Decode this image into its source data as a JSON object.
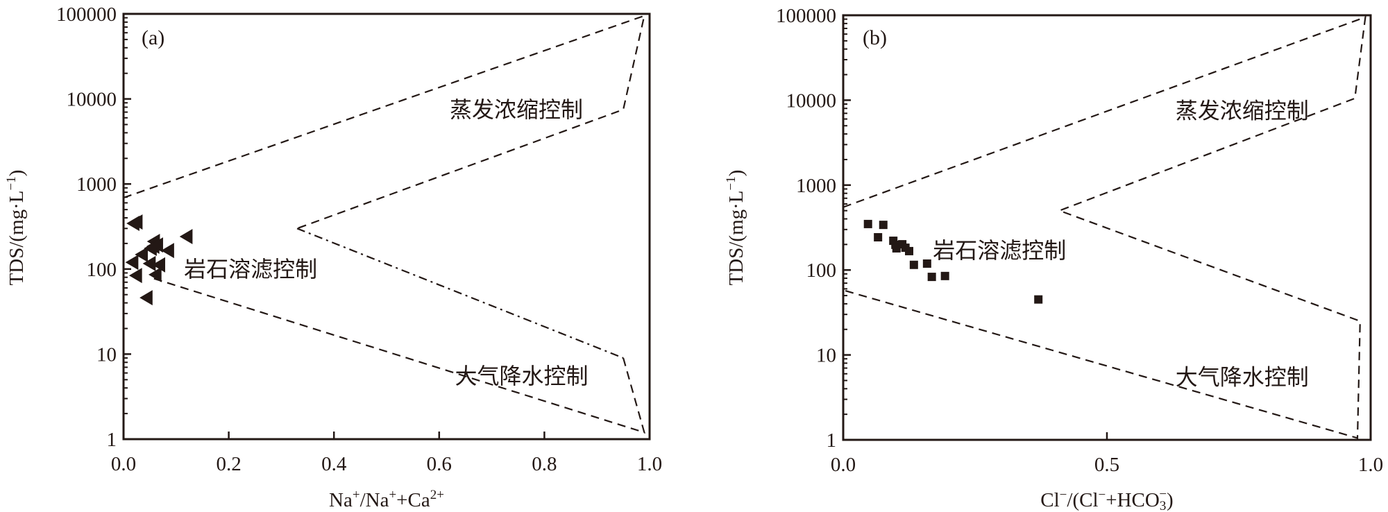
{
  "chart_data": [
    {
      "type": "scatter",
      "panel": "(a)",
      "xlabel_parts": {
        "base1": "Na",
        "sup1": "+",
        "sep": "/Na",
        "sup2": "+",
        "plus": "+Ca",
        "sup3": "2+"
      },
      "xlabel": "Na+/Na++Ca2+",
      "ylabel": "TDS/(mg·L−1)",
      "ylabel_parts": {
        "main": "TDS/(mg·L",
        "sup": "−1",
        "close": ")"
      },
      "xlim": [
        0,
        1.0
      ],
      "ylim": [
        1,
        100000
      ],
      "yscale": "log",
      "x_ticks": [
        "0.0",
        "0.2",
        "0.4",
        "0.6",
        "0.8",
        "1.0"
      ],
      "x_tick_values": [
        0,
        0.2,
        0.4,
        0.6,
        0.8,
        1.0
      ],
      "y_ticks": [
        "1",
        "10",
        "100",
        "1000",
        "10000",
        "100000"
      ],
      "y_tick_values": [
        1,
        10,
        100,
        1000,
        10000,
        100000
      ],
      "marker": "left-triangle",
      "points": [
        {
          "x": 0.02,
          "y": 344
        },
        {
          "x": 0.026,
          "y": 357
        },
        {
          "x": 0.121,
          "y": 241
        },
        {
          "x": 0.059,
          "y": 211
        },
        {
          "x": 0.058,
          "y": 185
        },
        {
          "x": 0.053,
          "y": 175
        },
        {
          "x": 0.065,
          "y": 192
        },
        {
          "x": 0.086,
          "y": 165
        },
        {
          "x": 0.036,
          "y": 148
        },
        {
          "x": 0.018,
          "y": 120
        },
        {
          "x": 0.051,
          "y": 116
        },
        {
          "x": 0.069,
          "y": 112
        },
        {
          "x": 0.025,
          "y": 84
        },
        {
          "x": 0.062,
          "y": 86
        },
        {
          "x": 0.045,
          "y": 46
        }
      ],
      "boundaries": [
        {
          "style": "dashed",
          "points": [
            [
              0,
              690
            ],
            [
              0.99,
              95000
            ],
            [
              0.95,
              7500
            ],
            [
              0.33,
              300
            ]
          ]
        },
        {
          "style": "dashdot",
          "points": [
            [
              0.33,
              300
            ],
            [
              0.95,
              9
            ]
          ]
        },
        {
          "style": "dashed",
          "points": [
            [
              0.95,
              9
            ],
            [
              0.99,
              1.2
            ],
            [
              0.05,
              80
            ]
          ]
        }
      ],
      "annotations": [
        {
          "text": "蒸发浓缩控制",
          "x": 0.62,
          "y": 7500
        },
        {
          "text": "岩石溶滤控制",
          "x": 0.115,
          "y": 100
        },
        {
          "text": "大气降水控制",
          "x": 0.63,
          "y": 5.5
        }
      ]
    },
    {
      "type": "scatter",
      "panel": "(b)",
      "xlabel": "Cl−/(Cl−+HCO3−)",
      "xlabel_parts": {
        "a": "Cl",
        "s1": "−",
        "b": "/(Cl",
        "s2": "−",
        "c": "+HCO",
        "sub": "3",
        "s3": "−",
        "d": ")"
      },
      "ylabel": "TDS/(mg·L−1)",
      "ylabel_parts": {
        "main": "TDS/(mg·L",
        "sup": "−1",
        "close": ")"
      },
      "xlim": [
        0,
        1.0
      ],
      "ylim": [
        1,
        100000
      ],
      "yscale": "log",
      "x_ticks": [
        "0.0",
        "0.5",
        "1.0"
      ],
      "x_tick_values": [
        0,
        0.5,
        1.0
      ],
      "y_ticks": [
        "1",
        "10",
        "100",
        "1000",
        "10000",
        "100000"
      ],
      "y_tick_values": [
        1,
        10,
        100,
        1000,
        10000,
        100000
      ],
      "marker": "square",
      "points": [
        {
          "x": 0.047,
          "y": 348
        },
        {
          "x": 0.076,
          "y": 340
        },
        {
          "x": 0.066,
          "y": 243
        },
        {
          "x": 0.095,
          "y": 221
        },
        {
          "x": 0.099,
          "y": 198
        },
        {
          "x": 0.101,
          "y": 180
        },
        {
          "x": 0.112,
          "y": 201
        },
        {
          "x": 0.118,
          "y": 183
        },
        {
          "x": 0.125,
          "y": 167
        },
        {
          "x": 0.134,
          "y": 115
        },
        {
          "x": 0.159,
          "y": 119
        },
        {
          "x": 0.168,
          "y": 83
        },
        {
          "x": 0.193,
          "y": 85
        },
        {
          "x": 0.37,
          "y": 45
        }
      ],
      "boundaries": [
        {
          "style": "dashed",
          "points": [
            [
              0,
              550
            ],
            [
              0.99,
              95000
            ],
            [
              0.97,
              10500
            ],
            [
              0.41,
              500
            ],
            [
              0.98,
              25
            ],
            [
              0.975,
              1.05
            ],
            [
              0,
              58
            ]
          ]
        }
      ],
      "annotations": [
        {
          "text": "蒸发浓缩控制",
          "x": 0.63,
          "y": 7500
        },
        {
          "text": "岩石溶滤控制",
          "x": 0.17,
          "y": 170
        },
        {
          "text": "大气降水控制",
          "x": 0.63,
          "y": 5.5
        }
      ]
    }
  ],
  "colors": {
    "ink": "#231815",
    "background": "#ffffff"
  }
}
